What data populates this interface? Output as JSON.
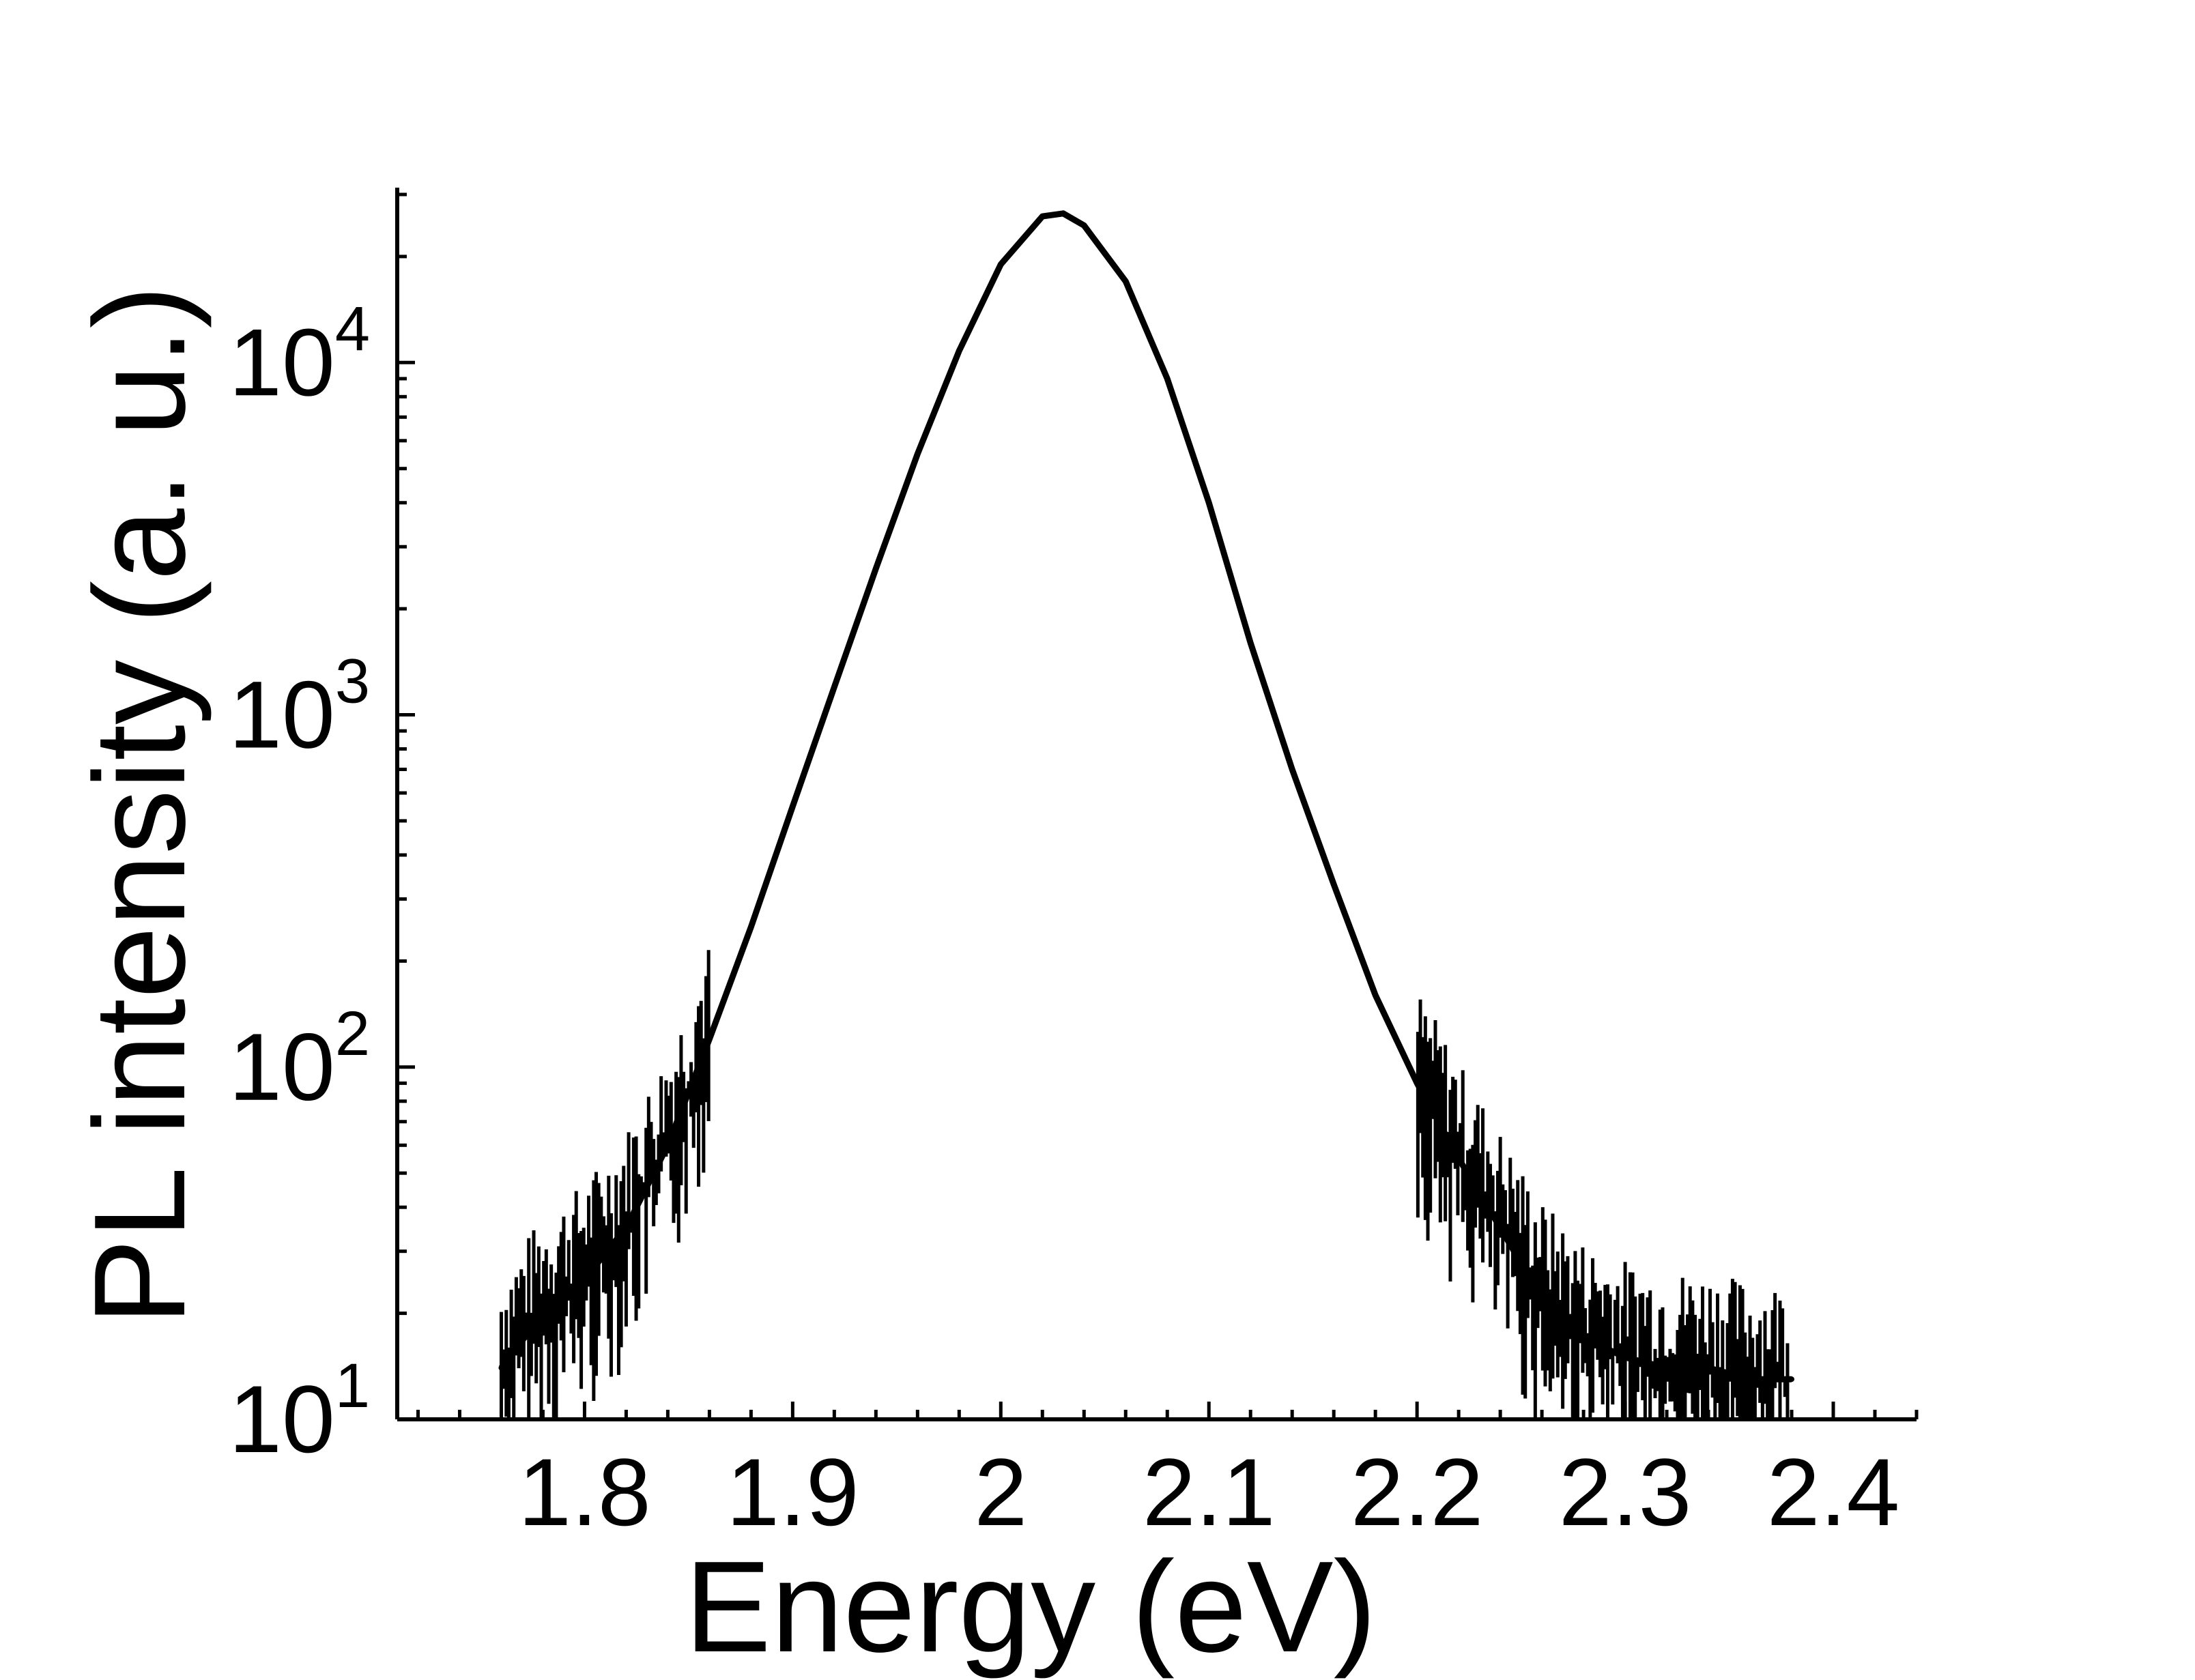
{
  "chart_data": {
    "type": "line",
    "xlabel": "Energy (eV)",
    "ylabel": "PL intensity (a. u.)",
    "xlim": [
      1.71,
      2.44
    ],
    "ylim": [
      10,
      30000
    ],
    "y_scale": "log",
    "grid": false,
    "legend": "none",
    "x_ticks": [
      "1.8",
      "1.9",
      "2",
      "2.1",
      "2.2",
      "2.3",
      "2.4"
    ],
    "x_tick_values": [
      1.8,
      1.9,
      2.0,
      2.1,
      2.2,
      2.3,
      2.4
    ],
    "y_ticks": [
      {
        "value": 10,
        "base": "10",
        "exp": "1"
      },
      {
        "value": 100,
        "base": "10",
        "exp": "2"
      },
      {
        "value": 1000,
        "base": "10",
        "exp": "3"
      },
      {
        "value": 10000,
        "base": "10",
        "exp": "4"
      }
    ],
    "series": [
      {
        "color": "#000000",
        "x": [
          1.76,
          1.78,
          1.8,
          1.82,
          1.84,
          1.86,
          1.88,
          1.9,
          1.92,
          1.94,
          1.96,
          1.98,
          2.0,
          2.02,
          2.03,
          2.04,
          2.06,
          2.08,
          2.1,
          2.12,
          2.14,
          2.16,
          2.18,
          2.2,
          2.22,
          2.24,
          2.26,
          2.28,
          2.3,
          2.32,
          2.34,
          2.36,
          2.38
        ],
        "y": [
          14,
          20,
          25,
          35,
          60,
          120,
          250,
          550,
          1200,
          2600,
          5500,
          10800,
          19000,
          26000,
          26500,
          24500,
          17000,
          9000,
          4000,
          1600,
          700,
          330,
          160,
          90,
          55,
          35,
          22,
          17,
          15,
          14,
          14,
          13,
          13
        ]
      }
    ]
  }
}
